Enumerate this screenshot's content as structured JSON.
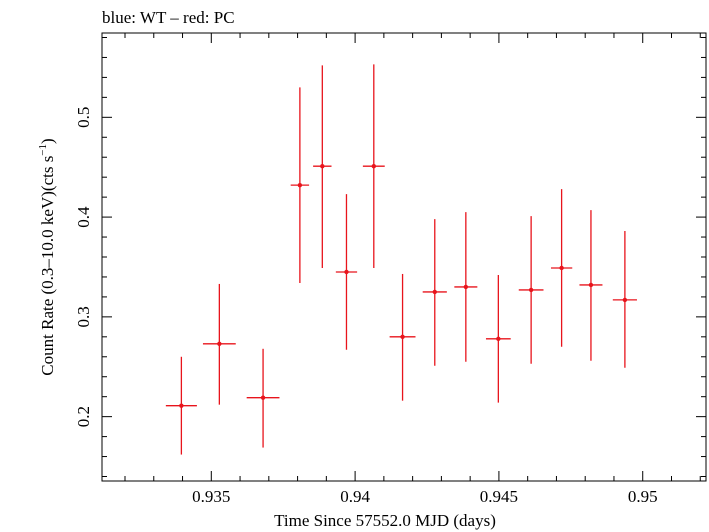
{
  "chart_data": {
    "type": "scatter",
    "title": "blue: WT – red: PC",
    "xlabel": "Time Since 57552.0 MJD (days)",
    "ylabel_main": "Count Rate (0.3–10.0 keV)(cts s",
    "ylabel_exp": "−1",
    "ylabel_close": ")",
    "xlim": [
      0.9312,
      0.9522
    ],
    "ylim": [
      0.1355,
      0.5845
    ],
    "xticks": [
      0.935,
      0.94,
      0.945,
      0.95
    ],
    "xtick_labels": [
      "0.935",
      "0.94",
      "0.945",
      "0.95"
    ],
    "yticks": [
      0.2,
      0.3,
      0.4,
      0.5
    ],
    "ytick_labels": [
      "0.2",
      "0.3",
      "0.4",
      "0.5"
    ],
    "series": [
      {
        "name": "PC",
        "color": "#e8141c",
        "points": [
          {
            "x": 0.93396,
            "xerr": 0.00054,
            "y": 0.211,
            "ylo": 0.162,
            "yhi": 0.26
          },
          {
            "x": 0.93528,
            "xerr": 0.00057,
            "y": 0.273,
            "ylo": 0.212,
            "yhi": 0.333
          },
          {
            "x": 0.9368,
            "xerr": 0.00057,
            "y": 0.219,
            "ylo": 0.169,
            "yhi": 0.268
          },
          {
            "x": 0.93808,
            "xerr": 0.00032,
            "y": 0.432,
            "ylo": 0.334,
            "yhi": 0.53
          },
          {
            "x": 0.93886,
            "xerr": 0.00032,
            "y": 0.451,
            "ylo": 0.349,
            "yhi": 0.552
          },
          {
            "x": 0.9397,
            "xerr": 0.00037,
            "y": 0.345,
            "ylo": 0.267,
            "yhi": 0.423
          },
          {
            "x": 0.94065,
            "xerr": 0.00038,
            "y": 0.451,
            "ylo": 0.349,
            "yhi": 0.553
          },
          {
            "x": 0.94165,
            "xerr": 0.00045,
            "y": 0.28,
            "ylo": 0.216,
            "yhi": 0.343
          },
          {
            "x": 0.94277,
            "xerr": 0.00042,
            "y": 0.325,
            "ylo": 0.251,
            "yhi": 0.398
          },
          {
            "x": 0.94385,
            "xerr": 0.0004,
            "y": 0.33,
            "ylo": 0.255,
            "yhi": 0.405
          },
          {
            "x": 0.94498,
            "xerr": 0.00043,
            "y": 0.278,
            "ylo": 0.214,
            "yhi": 0.342
          },
          {
            "x": 0.94612,
            "xerr": 0.00043,
            "y": 0.327,
            "ylo": 0.253,
            "yhi": 0.401
          },
          {
            "x": 0.94718,
            "xerr": 0.00037,
            "y": 0.349,
            "ylo": 0.27,
            "yhi": 0.428
          },
          {
            "x": 0.9482,
            "xerr": 0.0004,
            "y": 0.332,
            "ylo": 0.256,
            "yhi": 0.407
          },
          {
            "x": 0.94938,
            "xerr": 0.00042,
            "y": 0.317,
            "ylo": 0.249,
            "yhi": 0.386
          }
        ]
      }
    ]
  }
}
